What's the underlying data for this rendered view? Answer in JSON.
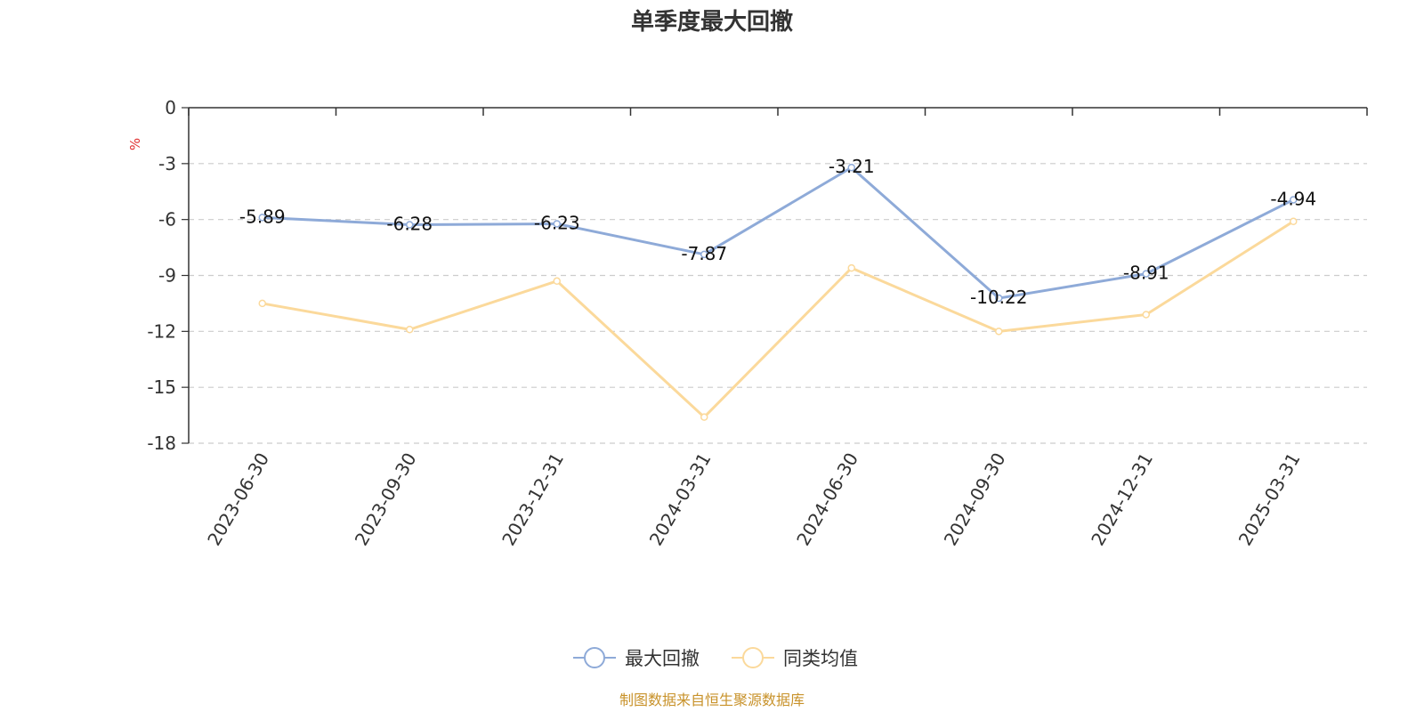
{
  "chart_data": {
    "type": "line",
    "title": "单季度最大回撤",
    "ylabel": "%",
    "categories": [
      "2023-06-30",
      "2023-09-30",
      "2023-12-31",
      "2024-03-31",
      "2024-06-30",
      "2024-09-30",
      "2024-12-31",
      "2025-03-31"
    ],
    "ylim": [
      -18,
      0
    ],
    "yticks": [
      0,
      -3,
      -6,
      -9,
      -12,
      -15,
      -18
    ],
    "grid": true,
    "legend_position": "bottom",
    "series": [
      {
        "name": "最大回撤",
        "color": "#8eaad8",
        "values": [
          -5.89,
          -6.28,
          -6.23,
          -7.87,
          -3.21,
          -10.22,
          -8.91,
          -4.94
        ],
        "labels": [
          "-5.89",
          "-6.28",
          "-6.23",
          "-7.87",
          "-3.21",
          "-10.22",
          "-8.91",
          "-4.94"
        ],
        "show_labels": true
      },
      {
        "name": "同类均值",
        "color": "#fbd99b",
        "values": [
          -10.5,
          -11.9,
          -9.3,
          -16.6,
          -8.6,
          -12.0,
          -11.1,
          -6.1
        ],
        "show_labels": false
      }
    ]
  },
  "colors": {
    "axis": "#333333",
    "grid": "#cccccc",
    "unit_label": "#e03030",
    "source": "#c8922a"
  },
  "source_text": "制图数据来自恒生聚源数据库"
}
